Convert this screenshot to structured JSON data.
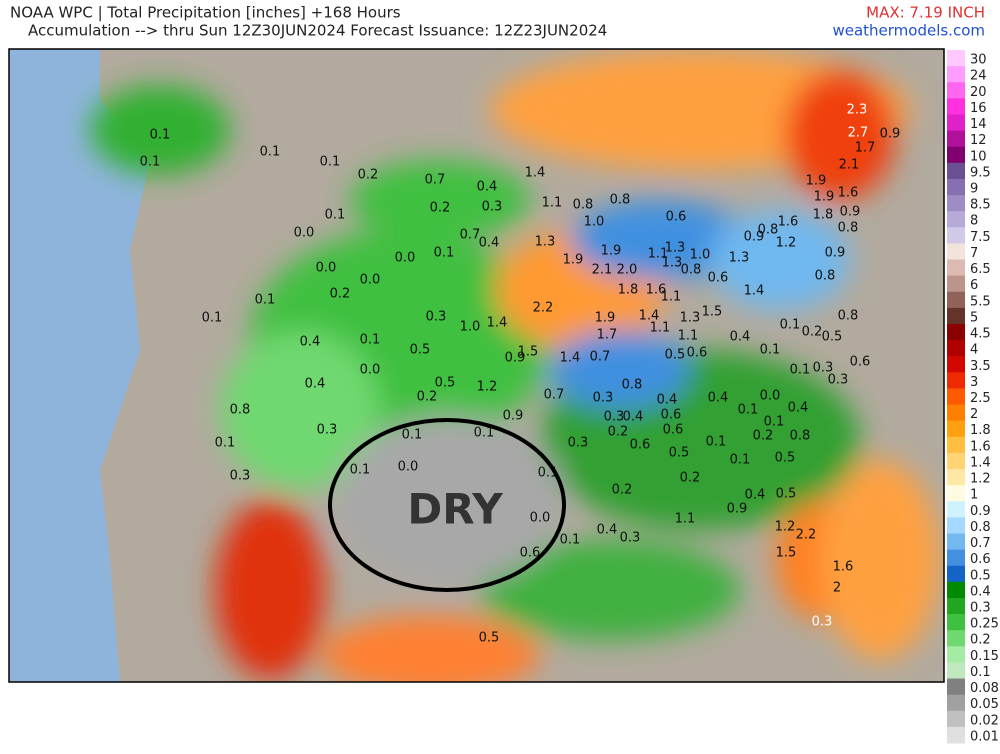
{
  "header": {
    "title": "NOAA WPC | Total Precipitation [inches] +168 Hours",
    "subtitle": "Accumulation --> thru Sun 12Z30JUN2024   Forecast Issuance: 12Z23JUN2024",
    "max": "MAX: 7.19 INCH",
    "site": "weathermodels.com"
  },
  "annotation": "DRY",
  "colorbar": {
    "levels": [
      30,
      24,
      20,
      16,
      14,
      12,
      10,
      9.5,
      9,
      8.5,
      8,
      7.5,
      7,
      6.5,
      6,
      5.5,
      5,
      4.5,
      4,
      3.5,
      3,
      2.5,
      2,
      1.8,
      1.6,
      1.4,
      1.2,
      1,
      0.9,
      0.8,
      0.7,
      0.6,
      0.5,
      0.4,
      0.3,
      0.25,
      0.2,
      0.15,
      0.1,
      0.08,
      0.05,
      0.02,
      0.01
    ],
    "colors": [
      "#ffc8ff",
      "#ff9cff",
      "#ff66f0",
      "#ff30e0",
      "#e020c8",
      "#b0109a",
      "#800070",
      "#6a5090",
      "#8670b0",
      "#9e8cc4",
      "#b8aad8",
      "#d2c8e8",
      "#f2e4dc",
      "#dcbab2",
      "#bc948a",
      "#906258",
      "#643428",
      "#8b0000",
      "#b00000",
      "#d00800",
      "#f02a00",
      "#ff5a00",
      "#ff8000",
      "#ffa010",
      "#ffbe40",
      "#ffd474",
      "#ffe8a4",
      "#fffbe0",
      "#d0f2ff",
      "#a4d8ff",
      "#74b8f0",
      "#4490e0",
      "#1464c8",
      "#008a00",
      "#22a622",
      "#40c040",
      "#70d870",
      "#a4eca4",
      "#bfe8bf",
      "#808080",
      "#a0a0a0",
      "#c0c0c0",
      "#e0e0e0"
    ]
  },
  "map_labels": [
    "0.1",
    "0.1",
    "0.1",
    "0.1",
    "0.2",
    "0.7",
    "0.4",
    "0.2",
    "0.3",
    "0.1",
    "0.0",
    "0.7",
    "0.4",
    "0.0",
    "0.1",
    "0.0",
    "0.0",
    "0.2",
    "0.1",
    "0.1",
    "0.3",
    "1.0",
    "1.4",
    "0.4",
    "0.1",
    "0.5",
    "0.0",
    "0.4",
    "0.5",
    "1.2",
    "0.8",
    "0.2",
    "0.3",
    "0.1",
    "0.1",
    "0.1",
    "0.9",
    "0.3",
    "0.1",
    "0.0",
    "0.1",
    "0.0",
    "0.6",
    "0.1",
    "1.1",
    "0.8",
    "0.8",
    "1.0",
    "0.6",
    "1.3",
    "1.9",
    "1.9",
    "2.1",
    "2.0",
    "1.3",
    "1.0",
    "1.3",
    "0.8",
    "0.6",
    "1.3",
    "2.2",
    "1.9",
    "1.7",
    "1.8",
    "1.6",
    "1.1",
    "1.4",
    "1.1",
    "1.3",
    "1.5",
    "1.1",
    "1.4",
    "0.7",
    "1.5",
    "0.9",
    "0.5",
    "0.6",
    "0.4",
    "0.1",
    "0.8",
    "0.7",
    "0.3",
    "0.3",
    "0.4",
    "0.4",
    "0.6",
    "0.2",
    "0.3",
    "0.6",
    "0.6",
    "0.5",
    "0.1",
    "0.1",
    "0.4",
    "0.0",
    "0.1",
    "0.1",
    "0.4",
    "0.2",
    "0.8",
    "0.5",
    "0.2",
    "0.2",
    "0.4",
    "0.3",
    "1.1",
    "0.9",
    "0.4",
    "0.5",
    "1.2",
    "2.2",
    "1.5",
    "1.6",
    "2",
    "0.3",
    "0.5",
    "2.3",
    "2.7",
    "0.9",
    "1.7",
    "2.1",
    "1.9",
    "1.9",
    "1.6",
    "1.8",
    "0.9",
    "0.8",
    "1.6",
    "0.8",
    "0.9",
    "1.2",
    "0.9",
    "0.8",
    "1.4",
    "0.8",
    "0.1",
    "0.2",
    "0.5",
    "0.6",
    "0.3",
    "0.3",
    "0.1",
    "1.1",
    "1.4"
  ]
}
